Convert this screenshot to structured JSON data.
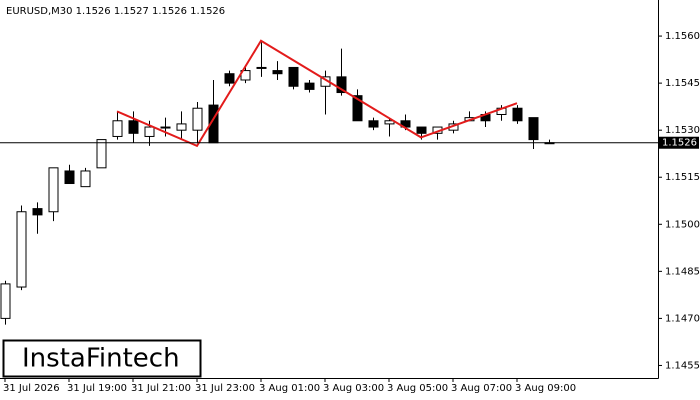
{
  "chart_data": {
    "type": "candlestick",
    "title": "EURUSD,M30  1.1526 1.1527 1.1526 1.1526",
    "logo": "InstaFintech",
    "categories": [
      "31 Jul 2026",
      null,
      null,
      null,
      "31 Jul 19:00",
      null,
      null,
      null,
      "31 Jul 21:00",
      null,
      null,
      null,
      "31 Jul 23:00",
      null,
      null,
      null,
      "3 Aug 01:00",
      null,
      null,
      null,
      "3 Aug 03:00",
      null,
      null,
      null,
      "3 Aug 05:00",
      null,
      null,
      null,
      "3 Aug 07:00",
      null,
      null,
      null,
      "3 Aug 09:00",
      null,
      null
    ],
    "open": [
      1.147,
      1.148,
      1.1505,
      1.1504,
      1.1517,
      1.1512,
      1.1518,
      1.1528,
      1.1533,
      1.1528,
      1.1531,
      1.153,
      1.153,
      1.1538,
      1.1548,
      1.1546,
      1.155,
      1.1549,
      1.155,
      1.1545,
      1.1544,
      1.1547,
      1.1541,
      1.1533,
      1.1532,
      1.1533,
      1.1531,
      1.1529,
      1.153,
      1.1533,
      1.1535,
      1.1535,
      1.1537,
      1.1534,
      1.1526
    ],
    "high": [
      1.1482,
      1.1506,
      1.1507,
      1.1518,
      1.1519,
      1.1518,
      1.1527,
      1.1536,
      1.1536,
      1.1533,
      1.1534,
      1.1536,
      1.1539,
      1.1546,
      1.1549,
      1.155,
      1.1558,
      1.1552,
      1.155,
      1.1546,
      1.1549,
      1.1556,
      1.1543,
      1.1534,
      1.1534,
      1.1535,
      1.1531,
      1.1531,
      1.1533,
      1.1536,
      1.1536,
      1.1538,
      1.1538,
      1.1534,
      1.1527
    ],
    "low": [
      1.1468,
      1.1479,
      1.1497,
      1.1501,
      1.1513,
      1.1512,
      1.1518,
      1.1527,
      1.1526,
      1.1525,
      1.1528,
      1.1527,
      1.1526,
      1.1526,
      1.1544,
      1.1545,
      1.1547,
      1.1546,
      1.1543,
      1.1542,
      1.1535,
      1.1541,
      1.1533,
      1.153,
      1.1528,
      1.153,
      1.1527,
      1.1527,
      1.1529,
      1.1533,
      1.1531,
      1.1533,
      1.1532,
      1.1524,
      1.1526
    ],
    "close": [
      1.1481,
      1.1504,
      1.1503,
      1.1518,
      1.1513,
      1.1517,
      1.1527,
      1.1533,
      1.1529,
      1.1531,
      1.1531,
      1.1532,
      1.1537,
      1.1526,
      1.1545,
      1.1549,
      1.155,
      1.1548,
      1.1544,
      1.1543,
      1.1547,
      1.1542,
      1.1533,
      1.1531,
      1.1533,
      1.1531,
      1.1529,
      1.1531,
      1.1532,
      1.1534,
      1.1533,
      1.1537,
      1.1533,
      1.1527,
      1.1526
    ],
    "last_price": 1.1526,
    "pattern": {
      "color": "#e31b1b",
      "candle": [
        7,
        12,
        16,
        26,
        32
      ],
      "values": [
        1.1536,
        1.1525,
        1.15585,
        1.15277,
        1.15386
      ]
    },
    "ylim": [
      1.1451,
      1.15715
    ],
    "yticks": [
      {
        "value": 1.156,
        "label": "1.1560"
      },
      1.1545,
      {
        "value": 1.153,
        "label": "1.1530"
      },
      1.1515,
      {
        "value": 1.15,
        "label": "1.1500"
      },
      1.1485,
      {
        "value": 1.147,
        "label": "1.1470"
      },
      1.1455
    ]
  }
}
